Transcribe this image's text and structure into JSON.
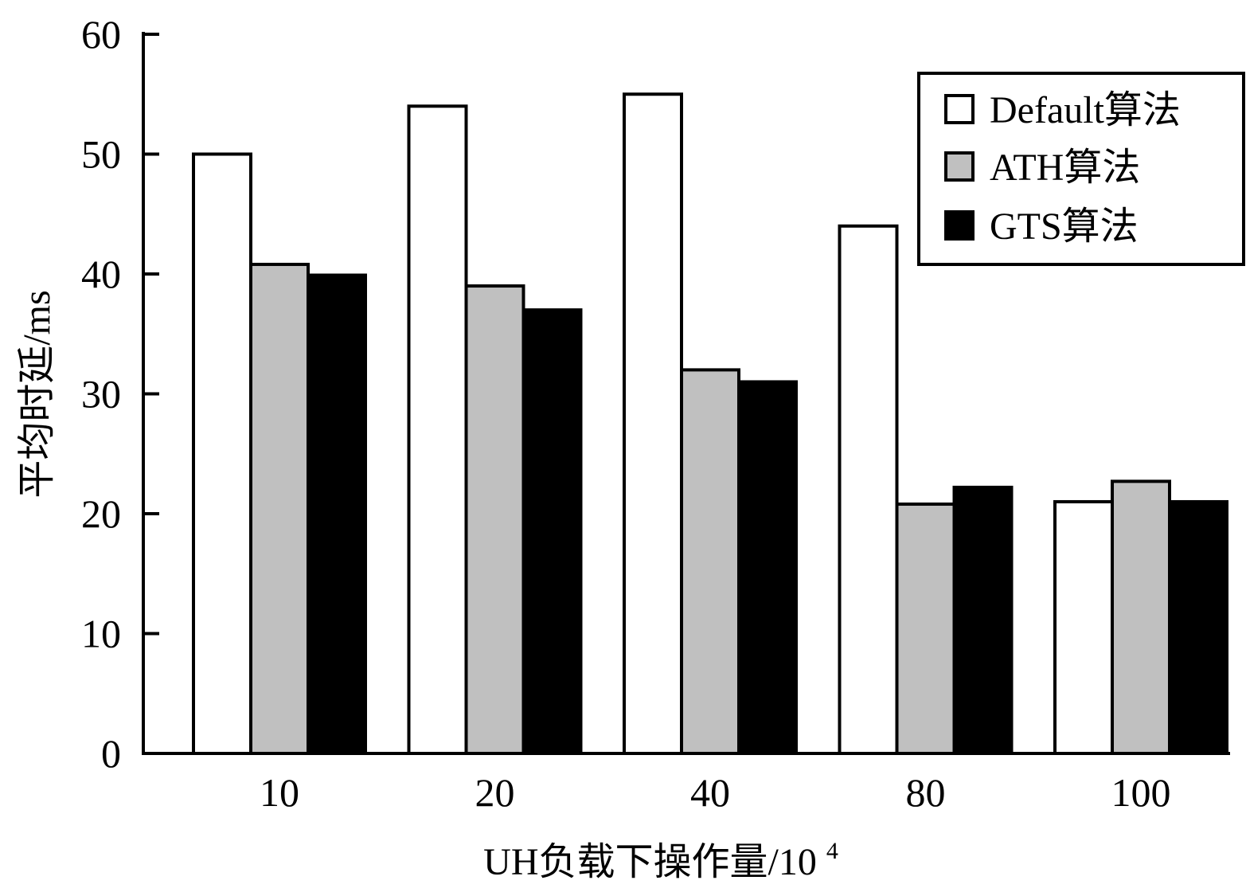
{
  "chart_data": {
    "type": "bar",
    "title": "",
    "xlabel_main": "UH负载下操作量/10",
    "xlabel_sup": "4",
    "ylabel": "平均时延/ms",
    "categories": [
      "10",
      "20",
      "40",
      "80",
      "100"
    ],
    "ylim": [
      0,
      60
    ],
    "yticks": [
      0,
      10,
      20,
      30,
      40,
      50,
      60
    ],
    "ytick_labels": [
      "0",
      "10",
      "20",
      "30",
      "40",
      "50",
      "60"
    ],
    "grid": false,
    "legend_position": "top-right",
    "series": [
      {
        "name": "Default算法",
        "color": "#ffffff",
        "values": [
          50,
          54,
          55,
          44,
          21
        ]
      },
      {
        "name": "ATH算法",
        "color": "#c0c0c0",
        "values": [
          40.8,
          39,
          32,
          20.8,
          22.7
        ]
      },
      {
        "name": "GTS算法",
        "color": "#000000",
        "values": [
          39.9,
          37,
          31,
          22.2,
          21
        ]
      }
    ]
  }
}
